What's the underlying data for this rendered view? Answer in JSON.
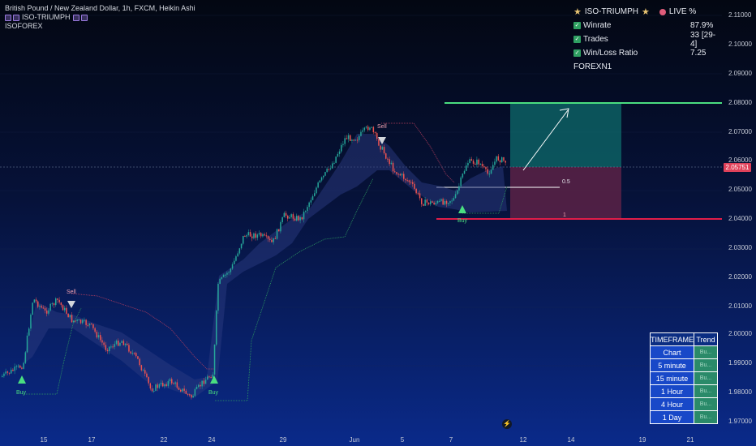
{
  "header": {
    "symbol_line": "British Pound / New Zealand Dollar, 1h, FXCM, Heikin Ashi",
    "indicator_name": "ISO-TRIUMPH",
    "sub_label": "ISOFOREX"
  },
  "stats_panel": {
    "title": "ISO-TRIUMPH",
    "live": "LIVE %",
    "rows": [
      {
        "label": "Winrate",
        "value": "87.9%"
      },
      {
        "label": "Trades",
        "value": "33 [29-4]"
      },
      {
        "label": "Win/Loss Ratio",
        "value": "7.25"
      }
    ],
    "footer": "FOREXN1"
  },
  "price_axis": [
    "2.11000",
    "2.10000",
    "2.09000",
    "2.08000",
    "2.07000",
    "2.06000",
    "2.05000",
    "2.04000",
    "2.03000",
    "2.02000",
    "2.01000",
    "2.00000",
    "1.99000",
    "1.98000",
    "1.97000"
  ],
  "current_price": "2.05751",
  "time_axis": [
    "15",
    "17",
    "22",
    "24",
    "29",
    "Jun",
    "5",
    "7",
    "12",
    "14",
    "19",
    "21"
  ],
  "signals": {
    "buy": "Buy",
    "sell": "Sell"
  },
  "trade_box": {
    "mid_label": "0.5",
    "stop_label": "1"
  },
  "timeframe_table": {
    "header": [
      "TIMEFRAME",
      "Trend"
    ],
    "rows": [
      {
        "tf": "Chart",
        "trend": "Bu..."
      },
      {
        "tf": "5 minute",
        "trend": "Bu..."
      },
      {
        "tf": "15 minute",
        "trend": "Bu..."
      },
      {
        "tf": "1 Hour",
        "trend": "Bu..."
      },
      {
        "tf": "4 Hour",
        "trend": "Bu..."
      },
      {
        "tf": "1 Day",
        "trend": "Bu..."
      }
    ]
  },
  "colors": {
    "bull": "#26a69a",
    "bear": "#ef5350",
    "target": "#4ade80",
    "stop": "#f43f5e",
    "accent": "#2962ff"
  }
}
